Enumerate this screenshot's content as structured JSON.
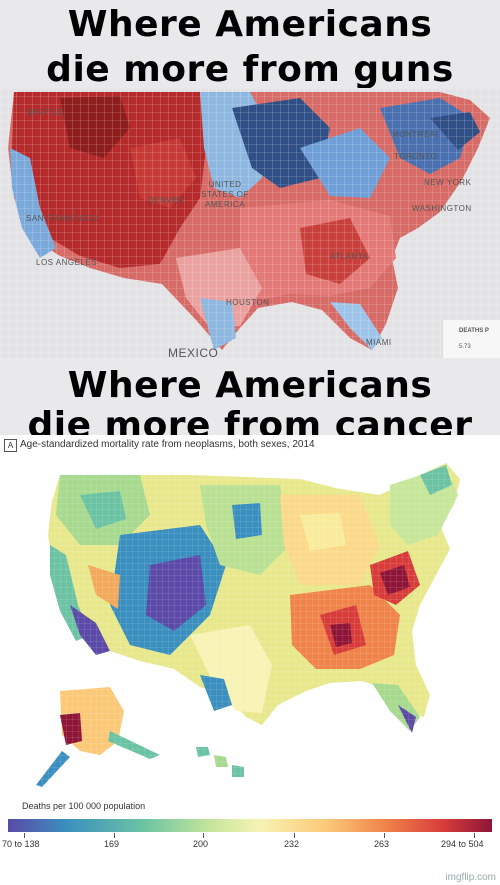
{
  "top_caption": {
    "line1": "Where Americans",
    "line2": "die more from guns"
  },
  "bottom_caption": {
    "line1": "Where Americans",
    "line2": "die more from cancer"
  },
  "gun_map": {
    "place_labels": [
      "SEATTLE",
      "MONTREAL",
      "TORONTO",
      "UNITED STATES OF AMERICA",
      "DENVER",
      "SAN FRANCISCO",
      "LOS ANGELES",
      "ATLANTA",
      "HOUSTON",
      "WASHINGTON",
      "NEW YORK",
      "MEXICO",
      "MIAMI"
    ],
    "legend_title": "DEATHS P",
    "legend_value": "5.73",
    "colors": {
      "high": "#b52b2b",
      "mid_high": "#e06a66",
      "mid_low": "#8fb8e0",
      "low": "#2f4f86"
    }
  },
  "cancer_map": {
    "panel_letter": "A",
    "title": "Age-standardized mortality rate from neoplasms, both sexes, 2014",
    "legend_title": "Deaths per 100 000 population",
    "legend_labels": [
      "70 to 138",
      "169",
      "200",
      "232",
      "263",
      "294 to 504"
    ],
    "legend_colors": [
      "#5b4aa8",
      "#3a8fbf",
      "#6cc3a3",
      "#c6e69a",
      "#f7f3b4",
      "#fbc878",
      "#f0834a",
      "#d73c3b",
      "#8e1538"
    ]
  },
  "watermark": "imgflip.com"
}
